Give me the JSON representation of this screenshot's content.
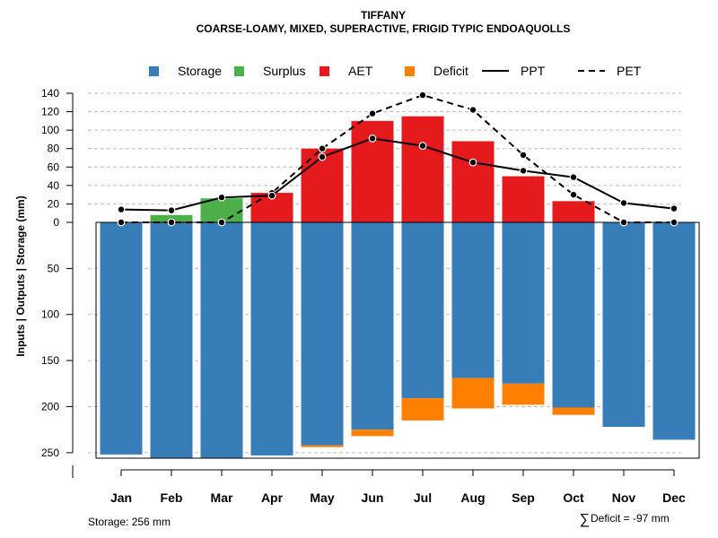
{
  "chart_data": {
    "type": "bar",
    "title": "TIFFANY",
    "subtitle": "COARSE-LOAMY, MIXED, SUPERACTIVE, FRIGID TYPIC ENDOAQUOLLS",
    "ylabel": "Inputs | Outputs | Storage     (mm)",
    "categories": [
      "Jan",
      "Feb",
      "Mar",
      "Apr",
      "May",
      "Jun",
      "Jul",
      "Aug",
      "Sep",
      "Oct",
      "Nov",
      "Dec"
    ],
    "upper_ticks": [
      0,
      20,
      40,
      60,
      80,
      100,
      120,
      140
    ],
    "upper_tick_labels": [
      "0",
      "20",
      "40",
      "60",
      "80",
      "100",
      "120",
      "140"
    ],
    "lower_ticks": [
      50,
      100,
      150,
      200,
      250
    ],
    "lower_tick_labels": [
      "50",
      "100",
      "150",
      "200",
      "250"
    ],
    "ylim_upper": [
      0,
      140
    ],
    "ylim_lower": [
      0,
      256
    ],
    "legend": [
      {
        "label": "Storage",
        "symbol": "square",
        "color": "#377EB8"
      },
      {
        "label": "Surplus",
        "symbol": "square",
        "color": "#4DAF4A"
      },
      {
        "label": "AET",
        "symbol": "square",
        "color": "#E41A1C"
      },
      {
        "label": "Deficit",
        "symbol": "square",
        "color": "#FF7F00"
      },
      {
        "label": "PPT",
        "symbol": "solid-line",
        "color": "#000000"
      },
      {
        "label": "PET",
        "symbol": "dashed-line",
        "color": "#000000"
      }
    ],
    "series": [
      {
        "name": "Surplus",
        "values": [
          0,
          8,
          26,
          0,
          0,
          0,
          0,
          0,
          0,
          0,
          0,
          0
        ]
      },
      {
        "name": "AET",
        "values": [
          0,
          0,
          0,
          32,
          80,
          110,
          115,
          88,
          50,
          23,
          0,
          0
        ]
      },
      {
        "name": "Storage",
        "values": [
          252,
          256,
          256,
          253,
          242,
          225,
          191,
          169,
          175,
          201,
          222,
          236
        ]
      },
      {
        "name": "Deficit",
        "values": [
          0,
          0,
          0,
          0,
          2,
          7,
          24,
          33,
          23,
          8,
          0,
          0
        ]
      },
      {
        "name": "PPT",
        "values": [
          14,
          13,
          27,
          29,
          71,
          91,
          83,
          65,
          56,
          49,
          21,
          15
        ]
      },
      {
        "name": "PET",
        "values": [
          0,
          0,
          0,
          32,
          80,
          118,
          138,
          122,
          73,
          30,
          0,
          0
        ]
      }
    ],
    "footer_left": "Storage: 256 mm",
    "footer_right_symbol": "∑",
    "footer_right": "Deficit = -97 mm"
  }
}
